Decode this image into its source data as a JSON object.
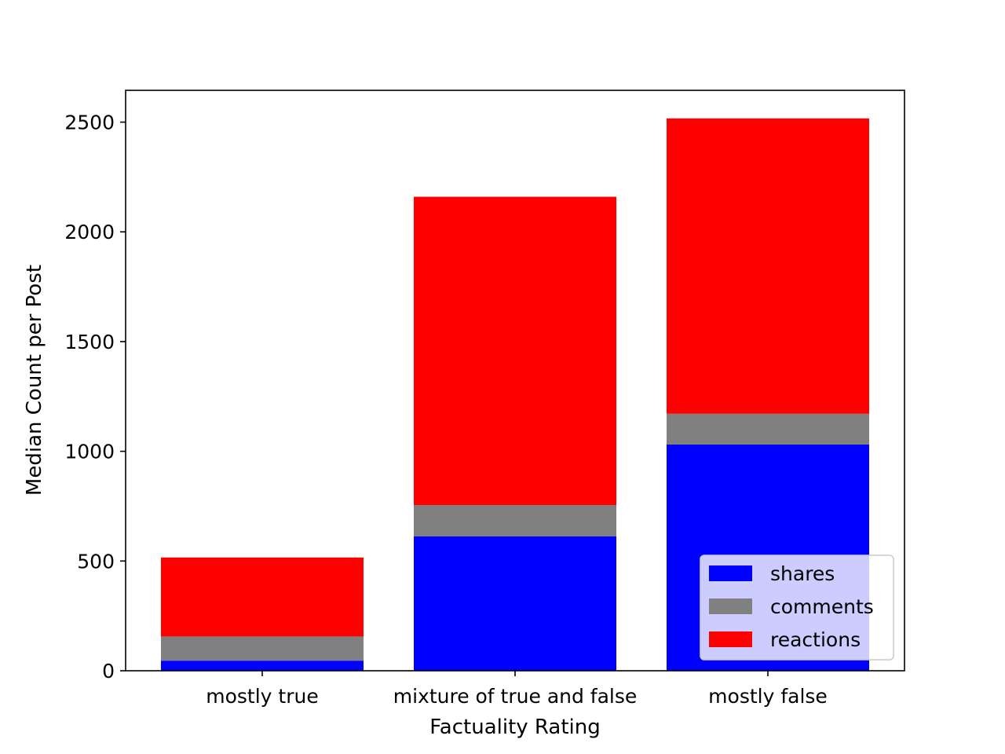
{
  "chart_data": {
    "type": "bar",
    "stacked": true,
    "categories": [
      "mostly true",
      "mixture of true and false",
      "mostly false"
    ],
    "series": [
      {
        "name": "shares",
        "color": "#0000ff",
        "values": [
          46,
          612,
          1031
        ]
      },
      {
        "name": "comments",
        "color": "#808080",
        "values": [
          110,
          143,
          140
        ]
      },
      {
        "name": "reactions",
        "color": "#ff0000",
        "values": [
          360,
          1405,
          1346
        ]
      }
    ],
    "xlabel": "Factuality Rating",
    "ylabel": "Median Count per Post",
    "ylim": [
      0,
      2645
    ],
    "yticks": [
      0,
      500,
      1000,
      1500,
      2000,
      2500
    ],
    "grid": false,
    "legend_position": "lower right"
  }
}
